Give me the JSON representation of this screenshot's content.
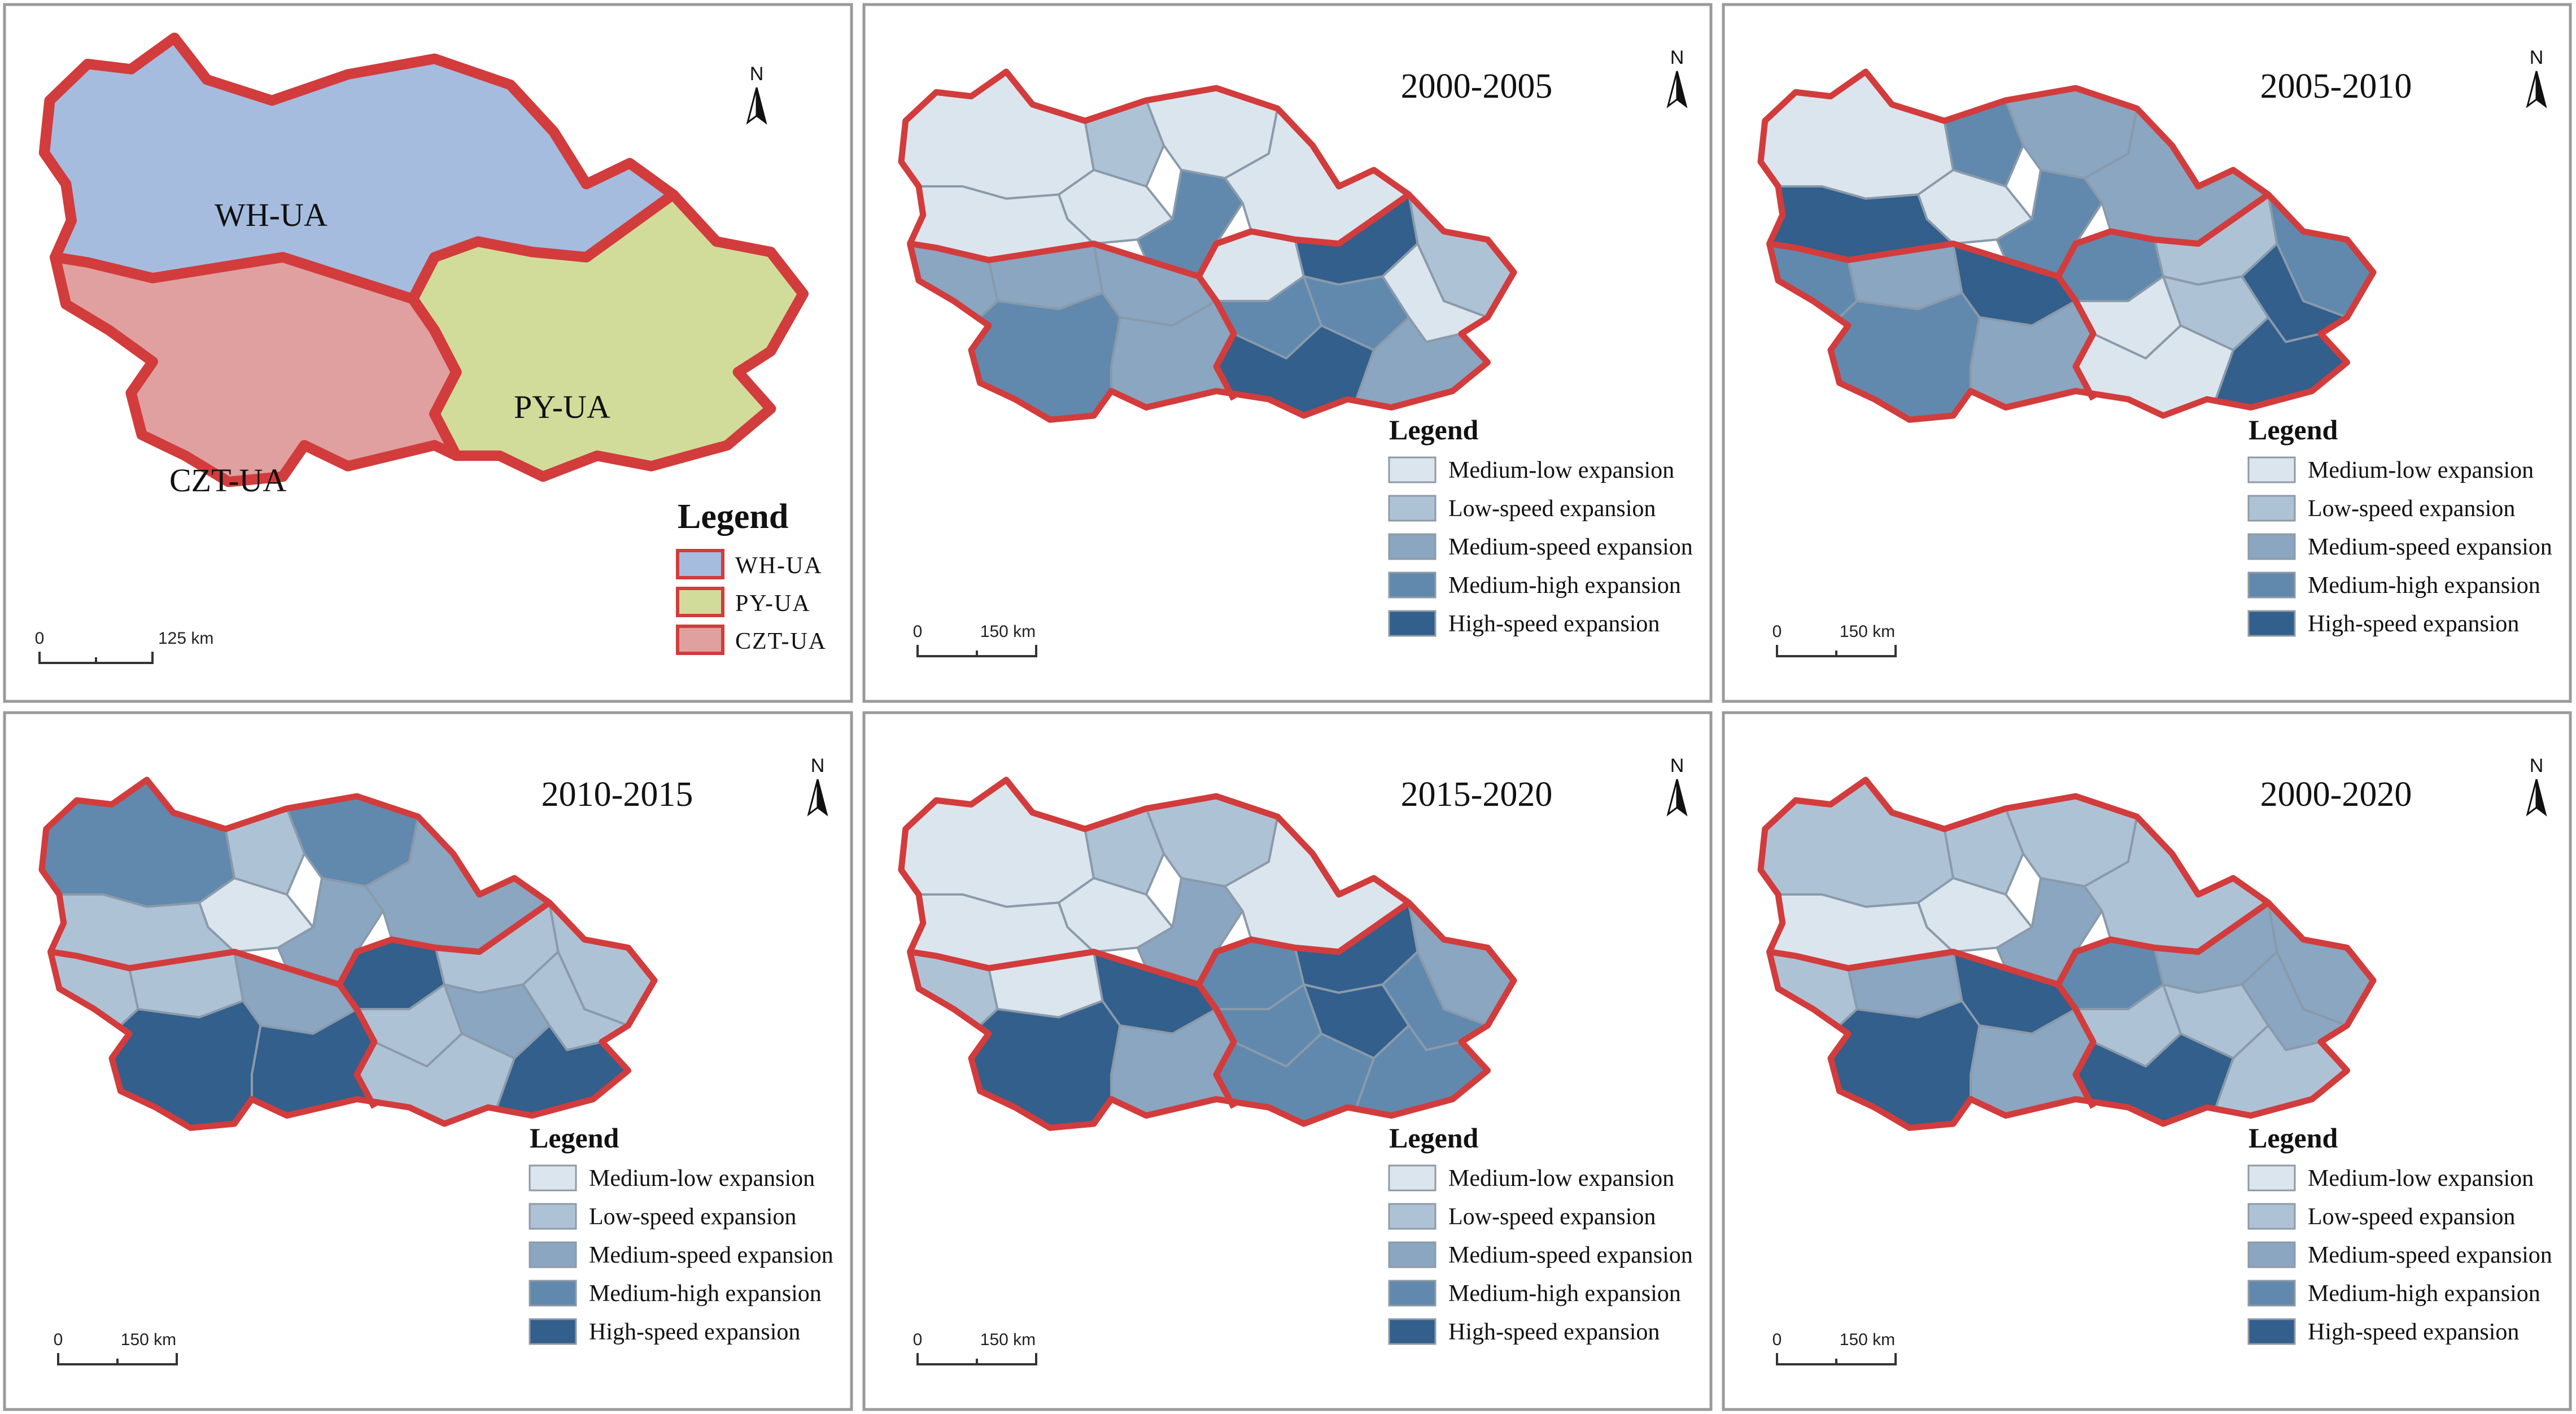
{
  "colors": {
    "wh_ua": "#a5bcdf",
    "py_ua": "#d2dc9a",
    "czt_ua": "#e0a0a0",
    "boundary": "#d23c3c",
    "medium_low": "#dbe5ee",
    "low_speed": "#aec2d6",
    "medium_speed": "#8aa6c1",
    "medium_high": "#6189ae",
    "high_speed": "#325f8c"
  },
  "legend_title": "Legend",
  "expansion_classes": [
    "Medium-low expansion",
    "Low-speed expansion",
    "Medium-speed expansion",
    "Medium-high expansion",
    "High-speed expansion"
  ],
  "north_label": "N",
  "overview": {
    "ua_labels": {
      "wh": "WH-UA",
      "py": "PY-UA",
      "czt": "CZT-UA"
    },
    "legend_items": [
      "WH-UA",
      "PY-UA",
      "CZT-UA"
    ],
    "scale_zero": "0",
    "scale_label": "125 km"
  },
  "periods": [
    {
      "title": "2000-2005",
      "scale_zero": "0",
      "scale_label": "150 km",
      "classes": {
        "wh1": 0,
        "wh2": 1,
        "wh3": 0,
        "wh4": 0,
        "wh5": 3,
        "wh6": 0,
        "wh7": 0,
        "czt1": 2,
        "czt2": 2,
        "czt3": 2,
        "czt4": 3,
        "czt5": 2,
        "py1": 0,
        "py2": 4,
        "py3": 1,
        "py4": 3,
        "py5": 3,
        "py6": 0,
        "py7": 4,
        "py8": 2
      }
    },
    {
      "title": "2005-2010",
      "scale_zero": "0",
      "scale_label": "150 km",
      "classes": {
        "wh1": 0,
        "wh2": 3,
        "wh3": 0,
        "wh4": 2,
        "wh5": 3,
        "wh6": 2,
        "wh7": 4,
        "czt1": 3,
        "czt2": 2,
        "czt3": 4,
        "czt4": 3,
        "czt5": 2,
        "py1": 3,
        "py2": 1,
        "py3": 3,
        "py4": 0,
        "py5": 1,
        "py6": 4,
        "py7": 0,
        "py8": 4
      }
    },
    {
      "title": "2010-2015",
      "scale_zero": "0",
      "scale_label": "150 km",
      "classes": {
        "wh1": 3,
        "wh2": 1,
        "wh3": 0,
        "wh4": 3,
        "wh5": 2,
        "wh6": 2,
        "wh7": 1,
        "czt1": 1,
        "czt2": 1,
        "czt3": 2,
        "czt4": 4,
        "czt5": 4,
        "py1": 4,
        "py2": 1,
        "py3": 1,
        "py4": 1,
        "py5": 2,
        "py6": 1,
        "py7": 1,
        "py8": 4
      }
    },
    {
      "title": "2015-2020",
      "scale_zero": "0",
      "scale_label": "150 km",
      "classes": {
        "wh1": 0,
        "wh2": 1,
        "wh3": 0,
        "wh4": 1,
        "wh5": 2,
        "wh6": 0,
        "wh7": 0,
        "czt1": 1,
        "czt2": 0,
        "czt3": 4,
        "czt4": 4,
        "czt5": 2,
        "py1": 3,
        "py2": 4,
        "py3": 2,
        "py4": 3,
        "py5": 4,
        "py6": 3,
        "py7": 3,
        "py8": 3
      }
    },
    {
      "title": "2000-2020",
      "scale_zero": "0",
      "scale_label": "150 km",
      "classes": {
        "wh1": 1,
        "wh2": 1,
        "wh3": 0,
        "wh4": 1,
        "wh5": 2,
        "wh6": 1,
        "wh7": 0,
        "czt1": 1,
        "czt2": 2,
        "czt3": 4,
        "czt4": 4,
        "czt5": 2,
        "py1": 3,
        "py2": 2,
        "py3": 2,
        "py4": 1,
        "py5": 1,
        "py6": 2,
        "py7": 4,
        "py8": 1
      }
    }
  ]
}
